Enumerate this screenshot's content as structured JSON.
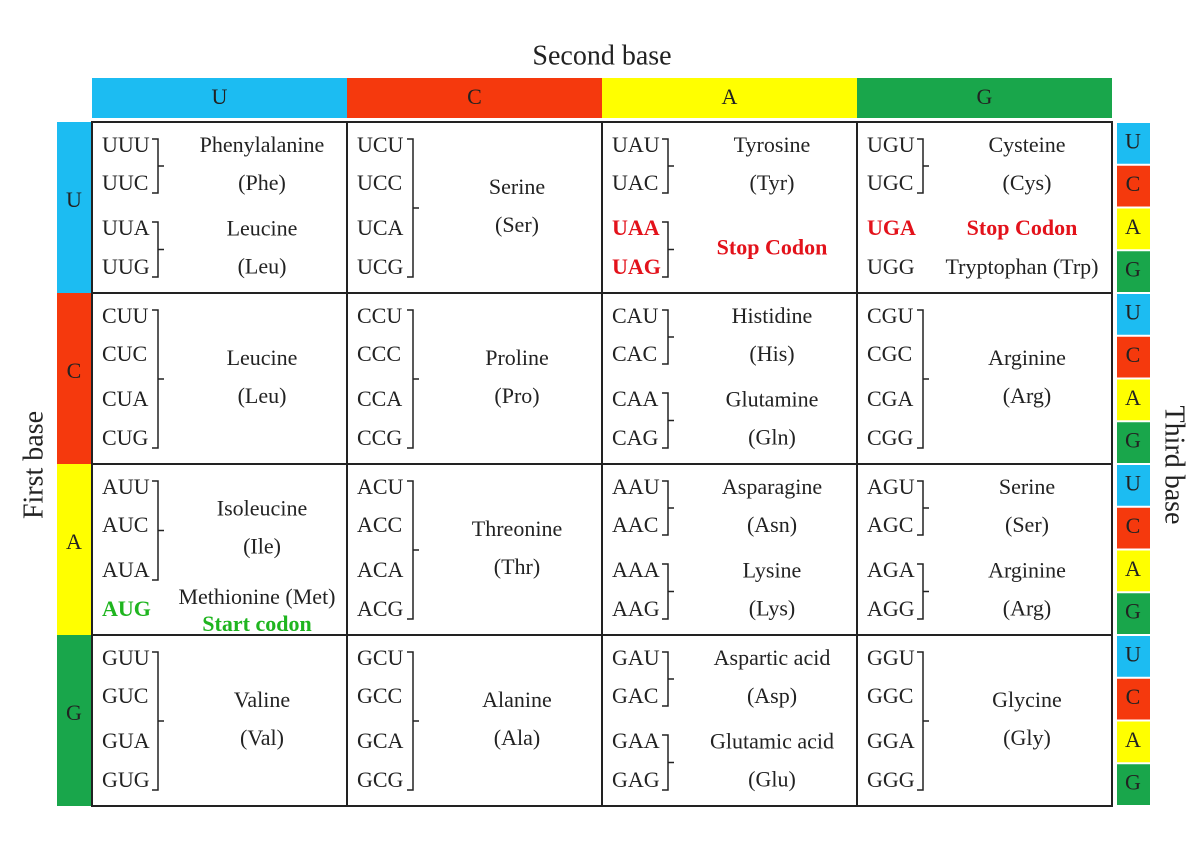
{
  "second_base": {
    "title": "Second base",
    "columns": [
      "U",
      "C",
      "A",
      "G"
    ]
  },
  "first_base": {
    "title": "First base",
    "rows": [
      "U",
      "C",
      "A",
      "G"
    ]
  },
  "third_base": {
    "title": "Third base",
    "groups": [
      [
        "U",
        "C",
        "A",
        "G"
      ],
      [
        "U",
        "C",
        "A",
        "G"
      ],
      [
        "U",
        "C",
        "A",
        "G"
      ],
      [
        "U",
        "C",
        "A",
        "G"
      ]
    ]
  },
  "grid": {
    "rows": [
      [
        [
          {
            "codons": [
              "UUU",
              "UUC"
            ],
            "name": "Phenylalanine",
            "abbr": "(Phe)"
          },
          {
            "codons": [
              "UUA",
              "UUG"
            ],
            "name": "Leucine",
            "abbr": "(Leu)"
          }
        ],
        [
          {
            "codons": [
              "UCU",
              "UCC",
              "UCA",
              "UCG"
            ],
            "name": "Serine",
            "abbr": "(Ser)"
          }
        ],
        [
          {
            "codons": [
              "UAU",
              "UAC"
            ],
            "name": "Tyrosine",
            "abbr": "(Tyr)"
          },
          {
            "codons": [
              "UAA",
              "UAG"
            ],
            "name": "Stop Codon",
            "color": "#e3121b",
            "name_color": "#e3121b"
          }
        ],
        [
          {
            "codons": [
              "UGU",
              "UGC"
            ],
            "name": "Cysteine",
            "abbr": "(Cys)"
          },
          {
            "codons": [
              "UGA"
            ],
            "name": "Stop Codon",
            "color": "#e3121b",
            "name_color": "#e3121b"
          },
          {
            "codons": [
              "UGG"
            ],
            "name": "Tryptophan (Trp)"
          }
        ]
      ],
      [
        [
          {
            "codons": [
              "CUU",
              "CUC",
              "CUA",
              "CUG"
            ],
            "name": "Leucine",
            "abbr": "(Leu)"
          }
        ],
        [
          {
            "codons": [
              "CCU",
              "CCC",
              "CCA",
              "CCG"
            ],
            "name": "Proline",
            "abbr": "(Pro)"
          }
        ],
        [
          {
            "codons": [
              "CAU",
              "CAC"
            ],
            "name": "Histidine",
            "abbr": "(His)"
          },
          {
            "codons": [
              "CAA",
              "CAG"
            ],
            "name": "Glutamine",
            "abbr": "(Gln)"
          }
        ],
        [
          {
            "codons": [
              "CGU",
              "CGC",
              "CGA",
              "CGG"
            ],
            "name": "Arginine",
            "abbr": "(Arg)"
          }
        ]
      ],
      [
        [
          {
            "codons": [
              "AUU",
              "AUC",
              "AUA"
            ],
            "name": "Isoleucine",
            "abbr": "(Ile)"
          },
          {
            "codons": [
              "AUG"
            ],
            "name": "Methionine (Met)",
            "note": "Start codon",
            "color": "#1fb51f"
          }
        ],
        [
          {
            "codons": [
              "ACU",
              "ACC",
              "ACA",
              "ACG"
            ],
            "name": "Threonine",
            "abbr": "(Thr)"
          }
        ],
        [
          {
            "codons": [
              "AAU",
              "AAC"
            ],
            "name": "Asparagine",
            "abbr": "(Asn)"
          },
          {
            "codons": [
              "AAA",
              "AAG"
            ],
            "name": "Lysine",
            "abbr": "(Lys)"
          }
        ],
        [
          {
            "codons": [
              "AGU",
              "AGC"
            ],
            "name": "Serine",
            "abbr": "(Ser)"
          },
          {
            "codons": [
              "AGA",
              "AGG"
            ],
            "name": "Arginine",
            "abbr": "(Arg)"
          }
        ]
      ],
      [
        [
          {
            "codons": [
              "GUU",
              "GUC",
              "GUA",
              "GUG"
            ],
            "name": "Valine",
            "abbr": "(Val)"
          }
        ],
        [
          {
            "codons": [
              "GCU",
              "GCC",
              "GCA",
              "GCG"
            ],
            "name": "Alanine",
            "abbr": "(Ala)"
          }
        ],
        [
          {
            "codons": [
              "GAU",
              "GAC"
            ],
            "name": "Aspartic acid",
            "abbr": "(Asp)"
          },
          {
            "codons": [
              "GAA",
              "GAG"
            ],
            "name": "Glutamic acid",
            "abbr": "(Glu)"
          }
        ],
        [
          {
            "codons": [
              "GGU",
              "GGC",
              "GGA",
              "GGG"
            ],
            "name": "Glycine",
            "abbr": "(Gly)"
          }
        ]
      ]
    ]
  }
}
